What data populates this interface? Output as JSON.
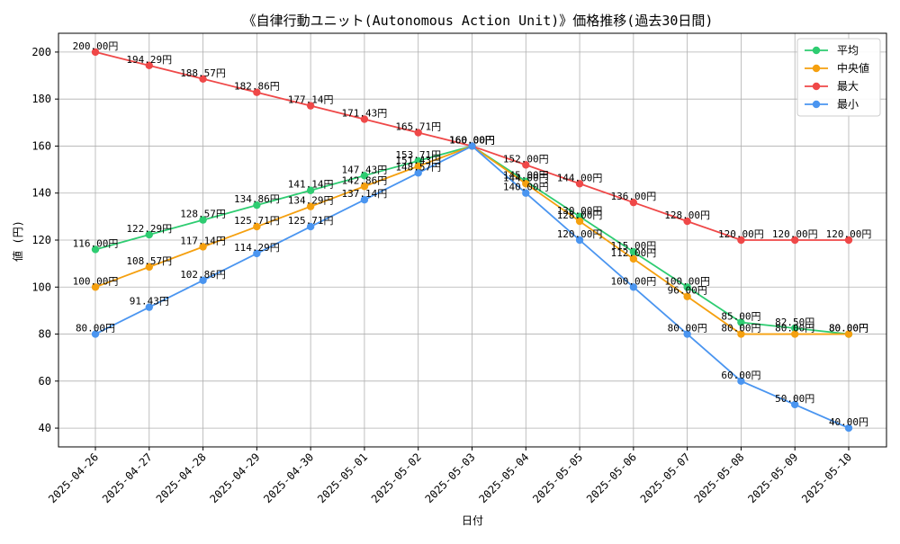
{
  "chart_data": {
    "type": "line",
    "title": "《自律行動ユニット(Autonomous Action Unit)》価格推移(過去30日間)",
    "xlabel": "日付",
    "ylabel": "値 (円)",
    "ylim": [
      32,
      208
    ],
    "yticks": [
      40,
      60,
      80,
      100,
      120,
      140,
      160,
      180,
      200
    ],
    "grid": true,
    "legend_position": "top-right",
    "label_suffix": "円",
    "categories": [
      "2025-04-26",
      "2025-04-27",
      "2025-04-28",
      "2025-04-29",
      "2025-04-30",
      "2025-05-01",
      "2025-05-02",
      "2025-05-03",
      "2025-05-04",
      "2025-05-05",
      "2025-05-06",
      "2025-05-07",
      "2025-05-08",
      "2025-05-09",
      "2025-05-10"
    ],
    "series": [
      {
        "name": "平均",
        "color": "#2ecc71",
        "values": [
          116.0,
          122.29,
          128.57,
          134.86,
          141.14,
          147.43,
          153.71,
          160.0,
          145.0,
          130.0,
          115.0,
          100.0,
          85.0,
          82.5,
          80.0
        ]
      },
      {
        "name": "中央値",
        "color": "#f5a00f",
        "values": [
          100.0,
          108.57,
          117.14,
          125.71,
          134.29,
          142.86,
          151.43,
          160.0,
          144.0,
          128.0,
          112.0,
          96.0,
          80.0,
          80.0,
          80.0
        ]
      },
      {
        "name": "最大",
        "color": "#ef4848",
        "values": [
          200.0,
          194.29,
          188.57,
          182.86,
          177.14,
          171.43,
          165.71,
          160.0,
          152.0,
          144.0,
          136.0,
          128.0,
          120.0,
          120.0,
          120.0
        ]
      },
      {
        "name": "最小",
        "color": "#4a95f0",
        "values": [
          80.0,
          91.43,
          102.86,
          114.29,
          125.71,
          137.14,
          148.57,
          160.0,
          140.0,
          120.0,
          100.0,
          80.0,
          60.0,
          50.0,
          40.0
        ]
      }
    ]
  }
}
